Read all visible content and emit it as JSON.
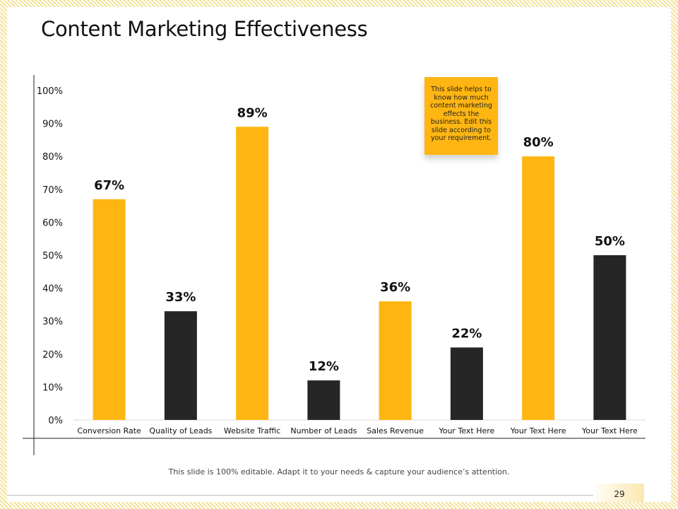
{
  "slide": {
    "title": "Content Marketing Effectiveness",
    "note": "This slide helps to know how much content marketing effects the business. Edit this slide according to your requirement.",
    "footer": "This slide is 100% editable. Adapt it to your needs & capture your audience’s attention.",
    "page_number": "29"
  },
  "colors": {
    "accent": "#ffb612",
    "dark": "#262626",
    "axis": "#222222"
  },
  "chart_data": {
    "type": "bar",
    "title": "Content Marketing Effectiveness",
    "xlabel": "",
    "ylabel": "",
    "ylim": [
      0,
      100
    ],
    "yticks": [
      0,
      10,
      20,
      30,
      40,
      50,
      60,
      70,
      80,
      90,
      100
    ],
    "ytick_suffix": "%",
    "grid": false,
    "categories": [
      "Conversion Rate",
      "Quality of Leads",
      "Website Traffic",
      "Number of Leads",
      "Sales Revenue",
      "Your Text Here",
      "Your Text Here",
      "Your Text Here"
    ],
    "values": [
      67,
      33,
      89,
      12,
      36,
      22,
      80,
      50
    ],
    "data_labels": [
      "67%",
      "33%",
      "89%",
      "12%",
      "36%",
      "22%",
      "80%",
      "50%"
    ],
    "bar_colors": [
      "#ffb612",
      "#262626",
      "#ffb612",
      "#262626",
      "#ffb612",
      "#262626",
      "#ffb612",
      "#262626"
    ]
  }
}
